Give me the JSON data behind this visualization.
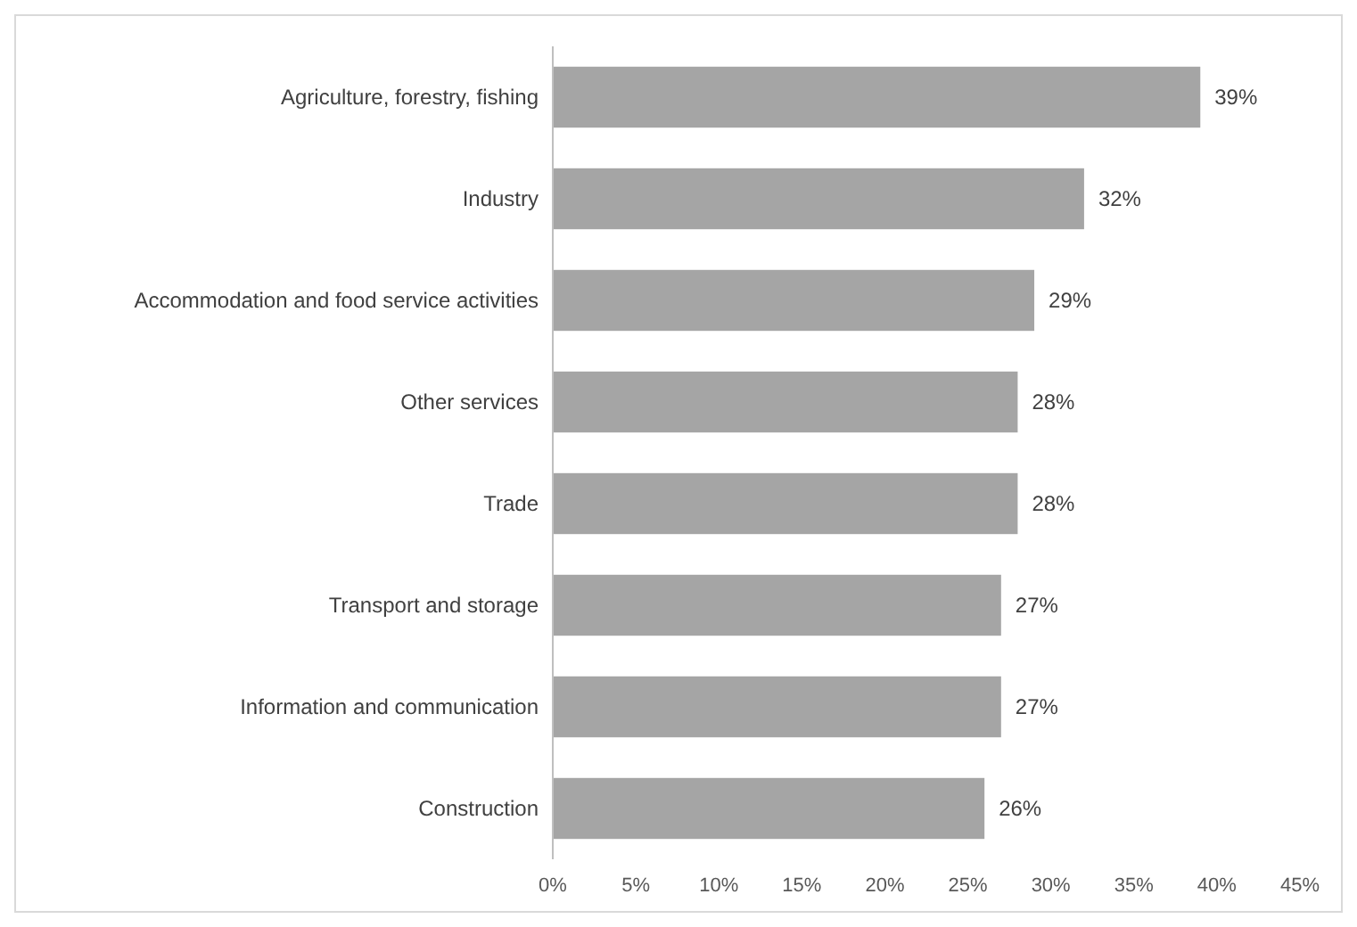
{
  "chart_data": {
    "type": "bar",
    "orientation": "horizontal",
    "categories": [
      "Agriculture, forestry, fishing",
      "Industry",
      "Accommodation and food service activities",
      "Other services",
      "Trade",
      "Transport and storage",
      "Information and communication",
      "Construction"
    ],
    "values": [
      39,
      32,
      29,
      28,
      28,
      27,
      27,
      26
    ],
    "value_labels": [
      "39%",
      "32%",
      "29%",
      "28%",
      "28%",
      "27%",
      "27%",
      "26%"
    ],
    "color": "#a5a5a5",
    "xlim": [
      0,
      45
    ],
    "xticks": [
      {
        "value": 0,
        "label": "0%"
      },
      {
        "value": 5,
        "label": "5%"
      },
      {
        "value": 10,
        "label": "10%"
      },
      {
        "value": 15,
        "label": "15%"
      },
      {
        "value": 20,
        "label": "20%"
      },
      {
        "value": 25,
        "label": "25%"
      },
      {
        "value": 30,
        "label": "30%"
      },
      {
        "value": 35,
        "label": "35%"
      },
      {
        "value": 40,
        "label": "40%"
      },
      {
        "value": 45,
        "label": "45%"
      }
    ],
    "grid": false
  }
}
